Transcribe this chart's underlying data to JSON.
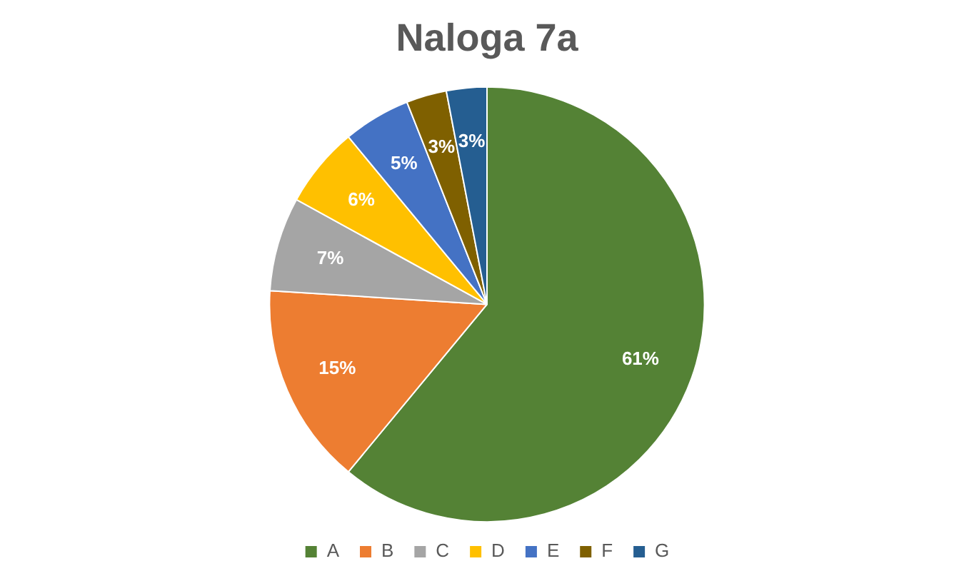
{
  "chart_data": {
    "type": "pie",
    "title": "Naloga 7a",
    "categories": [
      "A",
      "B",
      "C",
      "D",
      "E",
      "F",
      "G"
    ],
    "values": [
      61,
      15,
      7,
      6,
      5,
      3,
      3
    ],
    "value_labels": [
      "61%",
      "15%",
      "7%",
      "6%",
      "5%",
      "3%",
      "3%"
    ],
    "colors": [
      "#548235",
      "#ed7d31",
      "#a5a5a5",
      "#ffc000",
      "#4472c4",
      "#7f6000",
      "#255e91"
    ],
    "legend": "bottom"
  }
}
